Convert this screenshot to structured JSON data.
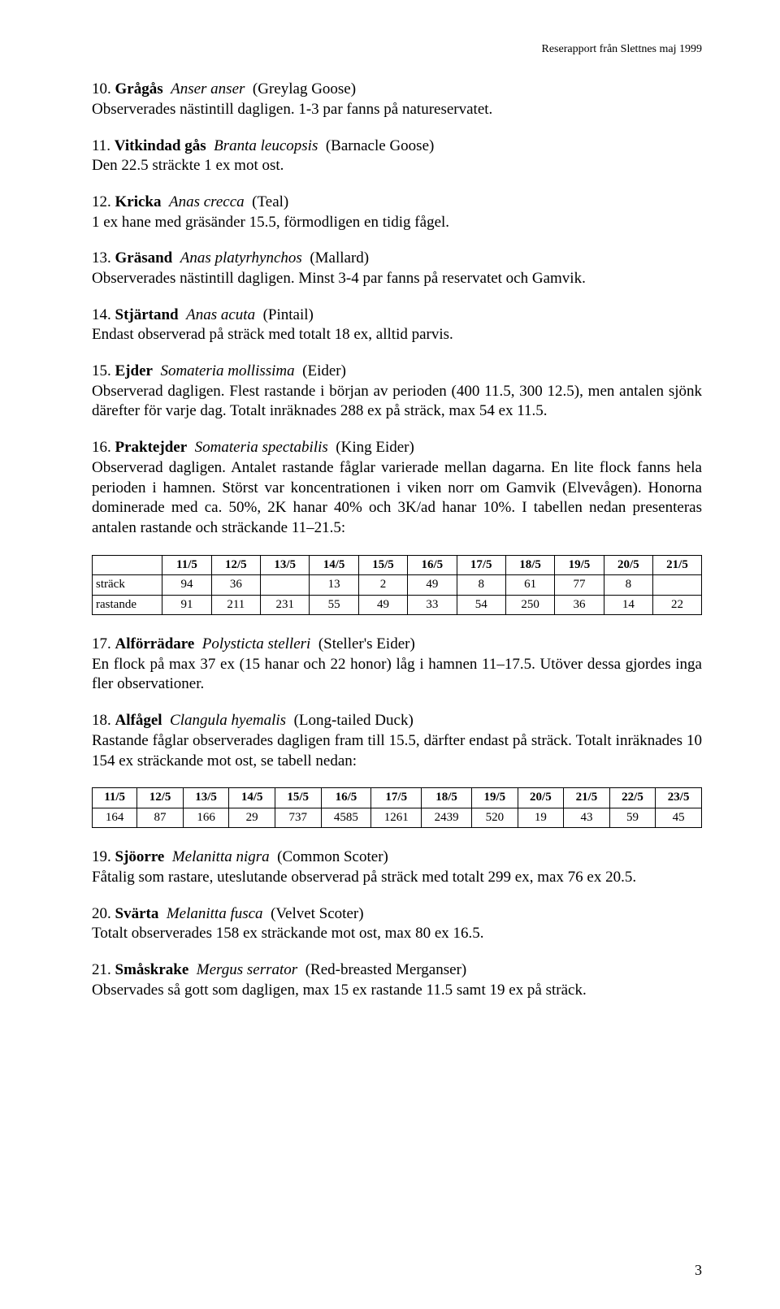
{
  "header": "Reserapport från Slettnes maj 1999",
  "entries": [
    {
      "num": "10",
      "name": "Grågås",
      "latin": "Anser anser",
      "eng": "(Greylag Goose)",
      "body": "Observerades nästintill dagligen. 1-3 par fanns på natureservatet."
    },
    {
      "num": "11",
      "name": "Vitkindad gås",
      "latin": "Branta leucopsis",
      "eng": "(Barnacle Goose)",
      "body": "Den 22.5 sträckte 1 ex mot ost."
    },
    {
      "num": "12",
      "name": "Kricka",
      "latin": "Anas crecca",
      "eng": "(Teal)",
      "body": "1 ex hane med gräsänder 15.5, förmodligen en tidig fågel."
    },
    {
      "num": "13",
      "name": "Gräsand",
      "latin": "Anas platyrhynchos",
      "eng": "(Mallard)",
      "body": "Observerades nästintill dagligen. Minst 3-4 par fanns på reservatet och Gamvik."
    },
    {
      "num": "14",
      "name": "Stjärtand",
      "latin": "Anas acuta",
      "eng": "(Pintail)",
      "body": "Endast observerad på sträck med totalt 18 ex, alltid parvis."
    },
    {
      "num": "15",
      "name": "Ejder",
      "latin": "Somateria mollissima",
      "eng": "(Eider)",
      "body": "Observerad dagligen. Flest rastande i början av perioden (400 11.5, 300 12.5), men antalen sjönk därefter för varje dag. Totalt inräknades 288 ex på sträck, max 54 ex 11.5."
    },
    {
      "num": "16",
      "name": "Praktejder",
      "latin": "Somateria spectabilis",
      "eng": "(King Eider)",
      "body": "Observerad dagligen. Antalet rastande fåglar varierade mellan dagarna. En lite flock fanns hela perioden i hamnen. Störst var koncentrationen i viken norr om Gamvik (Elvevågen). Honorna dominerade med ca. 50%, 2K hanar 40% och 3K/ad hanar 10%. I tabellen nedan presenteras antalen rastande och sträckande 11–21.5:"
    },
    {
      "num": "17",
      "name": "Alförrädare",
      "latin": "Polysticta stelleri",
      "eng": "(Steller's Eider)",
      "body": "En flock på max 37 ex (15 hanar och 22 honor) låg i hamnen 11–17.5. Utöver dessa gjordes inga fler observationer."
    },
    {
      "num": "18",
      "name": "Alfågel",
      "latin": "Clangula hyemalis",
      "eng": "(Long-tailed Duck)",
      "body": "Rastande fåglar observerades dagligen fram till 15.5, därfter endast på sträck. Totalt inräknades 10 154 ex sträckande mot ost, se tabell nedan:"
    },
    {
      "num": "19",
      "name": "Sjöorre",
      "latin": "Melanitta nigra",
      "eng": "(Common Scoter)",
      "body": "Fåtalig som rastare, uteslutande observerad på sträck med totalt 299 ex, max 76 ex 20.5."
    },
    {
      "num": "20",
      "name": "Svärta",
      "latin": "Melanitta fusca",
      "eng": "(Velvet Scoter)",
      "body": "Totalt observerades 158 ex sträckande mot ost, max 80 ex 16.5."
    },
    {
      "num": "21",
      "name": "Småskrake",
      "latin": "Mergus serrator",
      "eng": "(Red-breasted Merganser)",
      "body": "Observades så gott som dagligen, max 15 ex rastande 11.5 samt 19 ex på sträck."
    }
  ],
  "table1": {
    "columns": [
      "",
      "11/5",
      "12/5",
      "13/5",
      "14/5",
      "15/5",
      "16/5",
      "17/5",
      "18/5",
      "19/5",
      "20/5",
      "21/5"
    ],
    "rows": [
      [
        "sträck",
        "94",
        "36",
        "",
        "13",
        "2",
        "49",
        "8",
        "61",
        "77",
        "8",
        ""
      ],
      [
        "rastande",
        "91",
        "211",
        "231",
        "55",
        "49",
        "33",
        "54",
        "250",
        "36",
        "14",
        "22"
      ]
    ],
    "col_widths": [
      "11.5%",
      "8.05%",
      "8.05%",
      "8.05%",
      "8.05%",
      "8.05%",
      "8.05%",
      "8.05%",
      "8.05%",
      "8.05%",
      "8.05%",
      "8.05%"
    ]
  },
  "table2": {
    "columns": [
      "11/5",
      "12/5",
      "13/5",
      "14/5",
      "15/5",
      "16/5",
      "17/5",
      "18/5",
      "19/5",
      "20/5",
      "21/5",
      "22/5",
      "23/5"
    ],
    "rows": [
      [
        "164",
        "87",
        "166",
        "29",
        "737",
        "4585",
        "1261",
        "2439",
        "520",
        "19",
        "43",
        "59",
        "45"
      ]
    ]
  },
  "page_number": "3"
}
